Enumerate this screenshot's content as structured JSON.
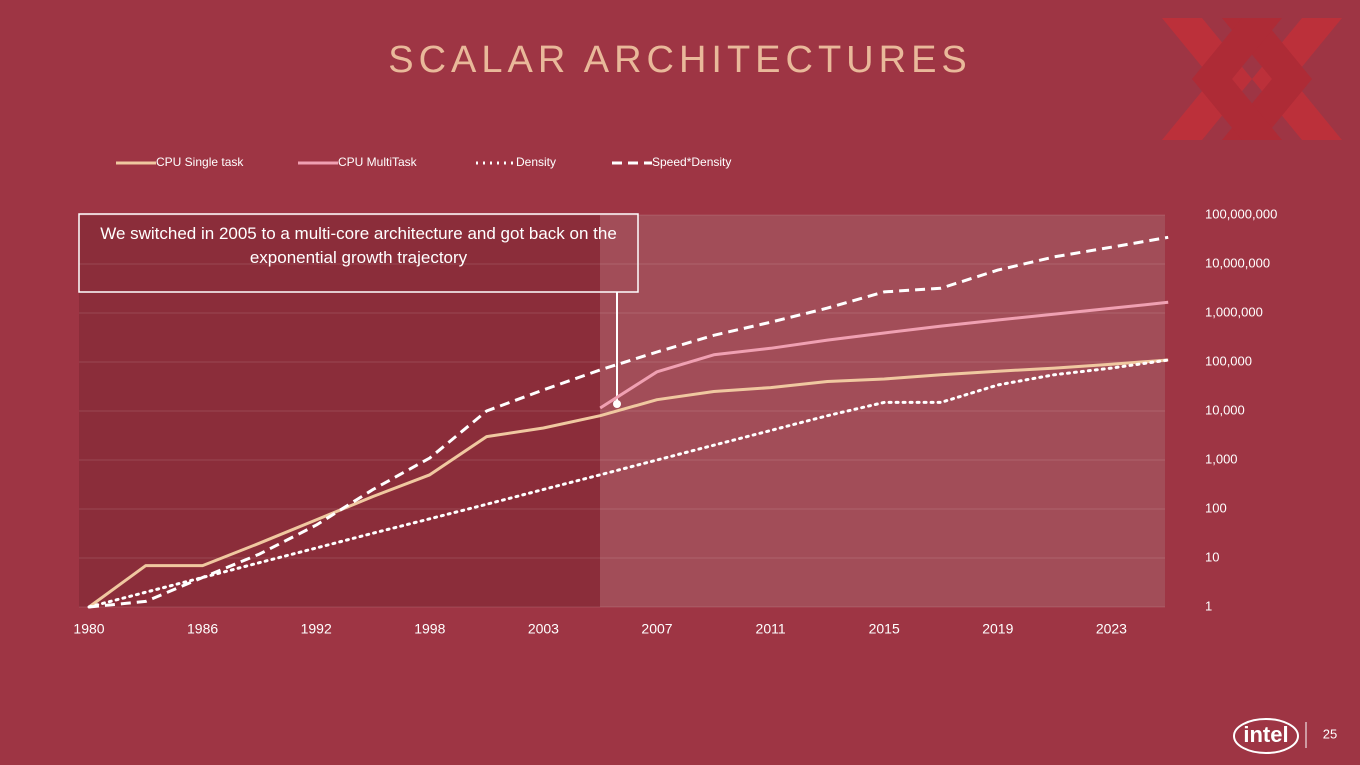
{
  "chart_data": {
    "type": "line",
    "title": "SCALAR ARCHITECTURES",
    "annotation": "We switched in 2005 to a multi-core architecture and got back on the exponential growth trajectory",
    "categories": [
      "1980",
      null,
      "1986",
      null,
      "1992",
      null,
      "1998",
      null,
      "2003",
      null,
      "2007",
      null,
      "2011",
      null,
      "2015",
      null,
      "2019",
      null,
      "2023",
      null
    ],
    "series": [
      {
        "name": "CPU Single task",
        "color": "#f0c8a0",
        "style": "solid",
        "values": [
          1,
          7,
          7,
          20,
          60,
          180,
          500,
          3000,
          4500,
          8000,
          17000,
          25000,
          30000,
          40000,
          45000,
          55000,
          65000,
          75000,
          90000,
          110000
        ]
      },
      {
        "name": "CPU MultiTask",
        "color": "#f0a0b2",
        "style": "solid",
        "values": [
          null,
          null,
          null,
          null,
          null,
          null,
          null,
          null,
          null,
          11500,
          63000,
          140000,
          190000,
          280000,
          390000,
          540000,
          720000,
          950000,
          1250000,
          1650000
        ]
      },
      {
        "name": "Density",
        "color": "#ffffff",
        "style": "dotted",
        "values": [
          1,
          2,
          4,
          8,
          16,
          32,
          63,
          125,
          250,
          500,
          1000,
          2000,
          4000,
          8000,
          15000,
          15000,
          34000,
          55000,
          75000,
          110000
        ]
      },
      {
        "name": "Speed*Density",
        "color": "#ffffff",
        "style": "dashed",
        "values": [
          1,
          1.3,
          4,
          12,
          47,
          250,
          1100,
          10000,
          27000,
          69000,
          160000,
          350000,
          650000,
          1260000,
          2700000,
          3200000,
          7500000,
          14000000,
          22000000,
          35000000
        ]
      }
    ],
    "ylog": true,
    "ylim": [
      1,
      100000000
    ],
    "yticks": [
      1,
      10,
      100,
      {
        "value": 1000,
        "label": "1,000"
      },
      {
        "value": 10000,
        "label": "10,000"
      },
      {
        "value": 100000,
        "label": "100,000"
      },
      {
        "value": 1000000,
        "label": "1,000,000"
      },
      {
        "value": 10000000,
        "label": "10,000,000"
      },
      {
        "value": 100000000,
        "label": "100,000,000"
      }
    ],
    "grid": true,
    "legend": "top",
    "page_number": "25",
    "logo": "intel"
  }
}
